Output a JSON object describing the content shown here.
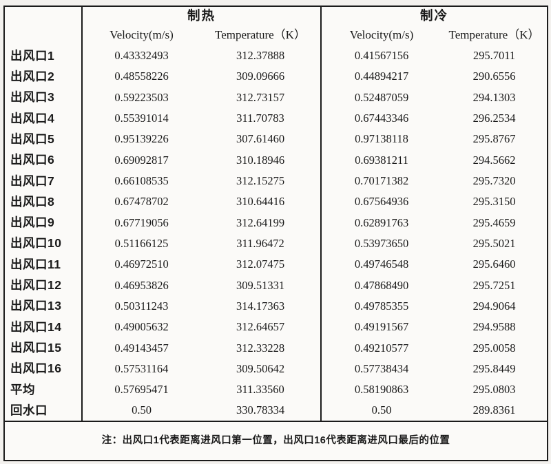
{
  "colors": {
    "border": "#1b1b1b",
    "text": "#1a1a1a",
    "page_background": "#f3f1ee",
    "table_background": "#fbfaf8"
  },
  "table": {
    "sections": [
      {
        "label": "制热"
      },
      {
        "label": "制冷"
      }
    ],
    "col_headers": {
      "velocity": "Velocity(m/s)",
      "temperature": "Temperature（K）"
    },
    "rows": [
      {
        "label": "出风口1",
        "heat_v": "0.43332493",
        "heat_t": "312.37888",
        "cool_v": "0.41567156",
        "cool_t": "295.7011"
      },
      {
        "label": "出风口2",
        "heat_v": "0.48558226",
        "heat_t": "309.09666",
        "cool_v": "0.44894217",
        "cool_t": "290.6556"
      },
      {
        "label": "出风口3",
        "heat_v": "0.59223503",
        "heat_t": "312.73157",
        "cool_v": "0.52487059",
        "cool_t": "294.1303"
      },
      {
        "label": "出风口4",
        "heat_v": "0.55391014",
        "heat_t": "311.70783",
        "cool_v": "0.67443346",
        "cool_t": "296.2534"
      },
      {
        "label": "出风口5",
        "heat_v": "0.95139226",
        "heat_t": "307.61460",
        "cool_v": "0.97138118",
        "cool_t": "295.8767"
      },
      {
        "label": "出风口6",
        "heat_v": "0.69092817",
        "heat_t": "310.18946",
        "cool_v": "0.69381211",
        "cool_t": "294.5662"
      },
      {
        "label": "出风口7",
        "heat_v": "0.66108535",
        "heat_t": "312.15275",
        "cool_v": "0.70171382",
        "cool_t": "295.7320"
      },
      {
        "label": "出风口8",
        "heat_v": "0.67478702",
        "heat_t": "310.64416",
        "cool_v": "0.67564936",
        "cool_t": "295.3150"
      },
      {
        "label": "出风口9",
        "heat_v": "0.67719056",
        "heat_t": "312.64199",
        "cool_v": "0.62891763",
        "cool_t": "295.4659"
      },
      {
        "label": "出风口10",
        "heat_v": "0.51166125",
        "heat_t": "311.96472",
        "cool_v": "0.53973650",
        "cool_t": "295.5021"
      },
      {
        "label": "出风口11",
        "heat_v": "0.46972510",
        "heat_t": "312.07475",
        "cool_v": "0.49746548",
        "cool_t": "295.6460"
      },
      {
        "label": "出风口12",
        "heat_v": "0.46953826",
        "heat_t": "309.51331",
        "cool_v": "0.47868490",
        "cool_t": "295.7251"
      },
      {
        "label": "出风口13",
        "heat_v": "0.50311243",
        "heat_t": "314.17363",
        "cool_v": "0.49785355",
        "cool_t": "294.9064"
      },
      {
        "label": "出风口14",
        "heat_v": "0.49005632",
        "heat_t": "312.64657",
        "cool_v": "0.49191567",
        "cool_t": "294.9588"
      },
      {
        "label": "出风口15",
        "heat_v": "0.49143457",
        "heat_t": "312.33228",
        "cool_v": "0.49210577",
        "cool_t": "295.0058"
      },
      {
        "label": "出风口16",
        "heat_v": "0.57531164",
        "heat_t": "309.50642",
        "cool_v": "0.57738434",
        "cool_t": "295.8449"
      },
      {
        "label": "平均",
        "heat_v": "0.57695471",
        "heat_t": "311.33560",
        "cool_v": "0.58190863",
        "cool_t": "295.0803"
      },
      {
        "label": "回水口",
        "heat_v": "0.50",
        "heat_t": "330.78334",
        "cool_v": "0.50",
        "cool_t": "289.8361"
      }
    ],
    "note": "注：出风口1代表距离进风口第一位置，出风口16代表距离进风口最后的位置"
  }
}
